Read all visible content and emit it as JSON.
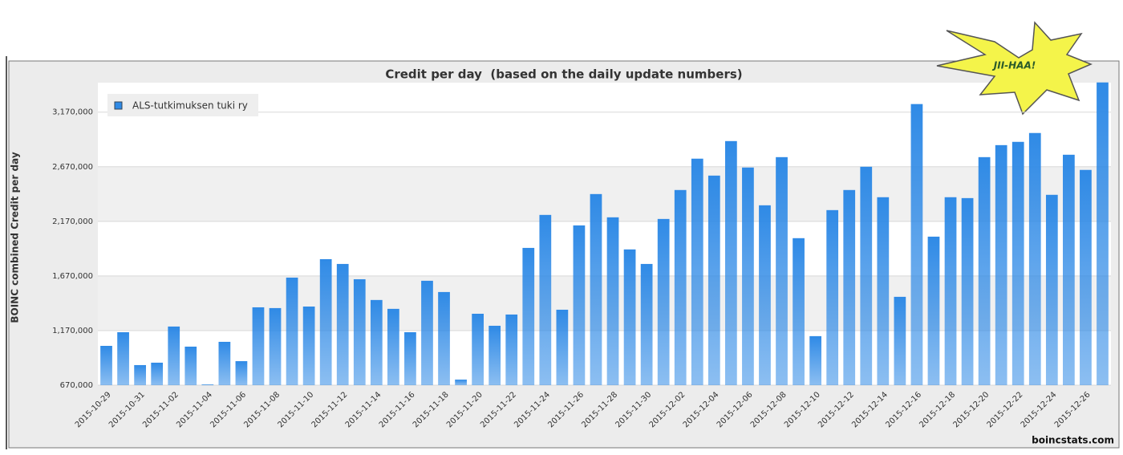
{
  "chart_data": {
    "type": "bar",
    "title": "Credit per day  (based on the daily update numbers)",
    "y_label": "BOINC combined Credit per day",
    "categories": [
      "2015-10-29",
      null,
      "2015-10-31",
      null,
      "2015-11-02",
      null,
      "2015-11-04",
      null,
      "2015-11-06",
      null,
      "2015-11-08",
      null,
      "2015-11-10",
      null,
      "2015-11-12",
      null,
      "2015-11-14",
      null,
      "2015-11-16",
      null,
      "2015-11-18",
      null,
      "2015-11-20",
      null,
      "2015-11-22",
      null,
      "2015-11-24",
      null,
      "2015-11-26",
      null,
      "2015-11-28",
      null,
      "2015-11-30",
      null,
      "2015-12-02",
      null,
      "2015-12-04",
      null,
      "2015-12-06",
      null,
      "2015-12-08",
      null,
      "2015-12-10",
      null,
      "2015-12-12",
      null,
      "2015-12-14",
      null,
      "2015-12-16",
      null,
      "2015-12-18",
      null,
      "2015-12-20",
      null,
      "2015-12-22",
      null,
      "2015-12-24",
      null,
      "2015-12-26",
      null
    ],
    "series": [
      {
        "name": "ALS-tutkimuksen tuki ry",
        "color": "#2f8ae6",
        "values": [
          1030000,
          1155000,
          854000,
          876000,
          1207000,
          1023000,
          677000,
          1067000,
          890000,
          1383000,
          1376000,
          1655000,
          1390000,
          1824000,
          1780000,
          1640000,
          1450000,
          1369000,
          1155000,
          1626000,
          1523000,
          721000,
          1324000,
          1214000,
          1317000,
          1927000,
          2229000,
          1361000,
          2133000,
          2420000,
          2207000,
          1913000,
          1780000,
          2192000,
          2457000,
          2744000,
          2589000,
          2905000,
          2663000,
          2317000,
          2758000,
          2016000,
          1119000,
          2273000,
          2457000,
          2670000,
          2391000,
          1479000,
          3244000,
          2030000,
          2391000,
          2383000,
          2758000,
          2868000,
          2898000,
          2979000,
          2413000,
          2780000,
          2641000,
          3442000
        ]
      }
    ],
    "ylim": [
      670000,
      3440000
    ],
    "yticks": [
      {
        "value": 670000,
        "label": "670,000"
      },
      {
        "value": 1170000,
        "label": "1,170,000"
      },
      {
        "value": 1670000,
        "label": "1,670,000"
      },
      {
        "value": 2170000,
        "label": "2,170,000"
      },
      {
        "value": 2670000,
        "label": "2,670,000"
      },
      {
        "value": 3170000,
        "label": "3,170,000"
      }
    ],
    "grid": true,
    "legend": "upper-left"
  },
  "badge": "JII-HAA!",
  "source": "boincstats.com"
}
